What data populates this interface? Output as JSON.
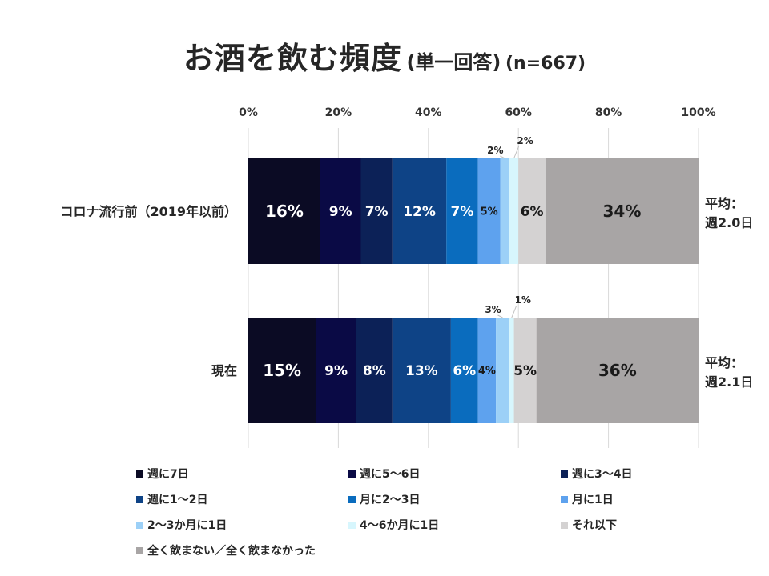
{
  "title": {
    "main": "お酒を飲む頻度",
    "sub": "(単一回答)",
    "n": "(n=667)"
  },
  "chart_data": {
    "type": "bar",
    "orientation": "horizontal",
    "stacked": true,
    "percent": true,
    "xlim": [
      0,
      100
    ],
    "xticks": [
      "0%",
      "20%",
      "40%",
      "60%",
      "80%",
      "100%"
    ],
    "categories": [
      "コロナ流行前（2019年以前）",
      "現在"
    ],
    "series": [
      {
        "name": "週に7日",
        "color": "#0b0b24",
        "values": [
          16,
          15
        ],
        "labels": [
          "16%",
          "15%"
        ]
      },
      {
        "name": "週に5～6日",
        "color": "#0a0a45",
        "values": [
          9,
          9
        ],
        "labels": [
          "9%",
          "9%"
        ]
      },
      {
        "name": "週に3～4日",
        "color": "#0c2157",
        "values": [
          7,
          8
        ],
        "labels": [
          "7%",
          "8%"
        ]
      },
      {
        "name": "週に1～2日",
        "color": "#0e4386",
        "values": [
          12,
          13
        ],
        "labels": [
          "12%",
          "13%"
        ]
      },
      {
        "name": "月に2～3日",
        "color": "#0a6cbe",
        "values": [
          7,
          6
        ],
        "labels": [
          "7%",
          "6%"
        ]
      },
      {
        "name": "月に1日",
        "color": "#5ea2ee",
        "values": [
          5,
          4
        ],
        "labels": [
          "5%",
          "4%"
        ]
      },
      {
        "name": "2～3か月に1日",
        "color": "#9cd0f7",
        "values": [
          2,
          3
        ],
        "labels": [
          "2%",
          "3%"
        ]
      },
      {
        "name": "4～6か月に1日",
        "color": "#d7f6fd",
        "values": [
          2,
          1
        ],
        "labels": [
          "2%",
          "1%"
        ]
      },
      {
        "name": "それ以下",
        "color": "#d4d2d2",
        "values": [
          6,
          5
        ],
        "labels": [
          "6%",
          "5%"
        ]
      },
      {
        "name": "全く飲まない／全く飲まなかった",
        "color": "#a8a5a5",
        "values": [
          34,
          36
        ],
        "labels": [
          "34%",
          "36%"
        ]
      }
    ],
    "averages": [
      {
        "label": "平均：",
        "value": "週2.0日"
      },
      {
        "label": "平均：",
        "value": "週2.1日"
      }
    ],
    "legend_position": "bottom"
  }
}
